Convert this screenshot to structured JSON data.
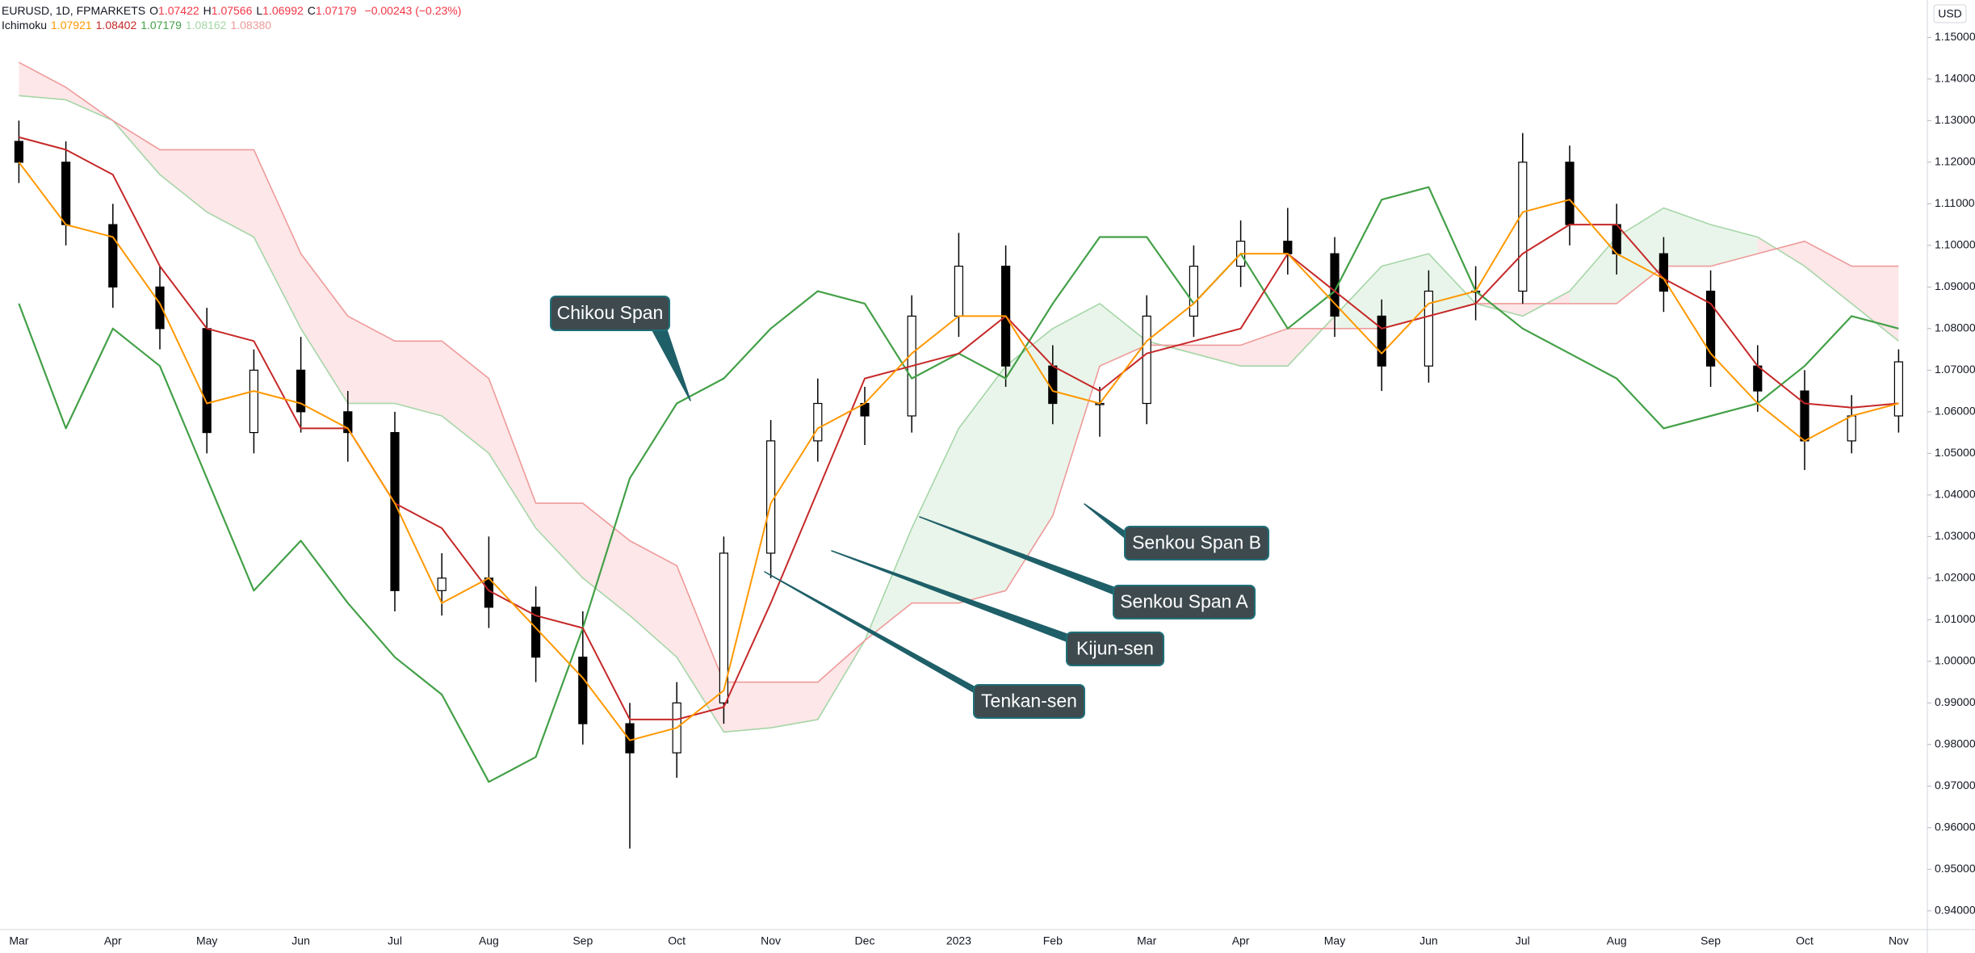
{
  "header": {
    "symbol": "EURUSD, 1D, FPMARKETS",
    "quote": [
      [
        "O",
        "1.07422"
      ],
      [
        "H",
        "1.07566"
      ],
      [
        "L",
        "1.06992"
      ],
      [
        "C",
        "1.07179"
      ]
    ],
    "change": "−0.00243 (−0.23%)",
    "indicator": "Ichimoku",
    "indicator_values": [
      "1.07921",
      "1.08402",
      "1.07179",
      "1.08162",
      "1.08380"
    ]
  },
  "chart_data": {
    "type": "candlestick",
    "currency": "USD",
    "categories": [
      "Mar",
      null,
      "Apr",
      null,
      "May",
      null,
      "Jun",
      null,
      "Jul",
      null,
      "Aug",
      null,
      "Sep",
      null,
      "Oct",
      null,
      "Nov",
      null,
      "Dec",
      null,
      "2023",
      null,
      "Feb",
      null,
      "Mar",
      null,
      "Apr",
      null,
      "May",
      null,
      "Jun",
      null,
      "Jul",
      null,
      "Aug",
      null,
      "Sep",
      null,
      "Oct",
      null,
      "Nov"
    ],
    "candles": {
      "up_color": "#ffffff",
      "down_color": "#000000",
      "open": [
        1.125,
        1.12,
        1.105,
        1.09,
        1.08,
        1.055,
        1.07,
        1.06,
        1.055,
        1.017,
        1.02,
        1.013,
        1.001,
        0.985,
        0.978,
        0.99,
        1.026,
        1.053,
        1.062,
        1.059,
        1.083,
        1.095,
        1.071,
        1.062,
        1.062,
        1.083,
        1.095,
        1.101,
        1.098,
        1.083,
        1.071,
        1.089,
        1.089,
        1.12,
        1.105,
        1.098,
        1.089,
        1.071,
        1.065,
        1.053,
        1.059
      ],
      "high": [
        1.13,
        1.125,
        1.11,
        1.095,
        1.085,
        1.075,
        1.078,
        1.065,
        1.06,
        1.026,
        1.03,
        1.018,
        1.012,
        0.99,
        0.995,
        1.03,
        1.058,
        1.068,
        1.066,
        1.088,
        1.103,
        1.1,
        1.076,
        1.066,
        1.088,
        1.1,
        1.106,
        1.109,
        1.102,
        1.087,
        1.094,
        1.095,
        1.127,
        1.124,
        1.11,
        1.102,
        1.094,
        1.076,
        1.07,
        1.064,
        1.075
      ],
      "low": [
        1.115,
        1.1,
        1.085,
        1.075,
        1.05,
        1.05,
        1.055,
        1.048,
        1.012,
        1.011,
        1.008,
        0.995,
        0.98,
        0.955,
        0.972,
        0.985,
        1.02,
        1.048,
        1.052,
        1.055,
        1.078,
        1.066,
        1.057,
        1.054,
        1.057,
        1.078,
        1.09,
        1.093,
        1.078,
        1.065,
        1.067,
        1.082,
        1.086,
        1.1,
        1.093,
        1.084,
        1.066,
        1.06,
        1.046,
        1.05,
        1.055
      ],
      "close": [
        1.12,
        1.105,
        1.09,
        1.08,
        1.055,
        1.07,
        1.06,
        1.055,
        1.017,
        1.02,
        1.013,
        1.001,
        0.985,
        0.978,
        0.99,
        1.026,
        1.053,
        1.062,
        1.059,
        1.083,
        1.095,
        1.071,
        1.062,
        1.062,
        1.083,
        1.095,
        1.101,
        1.098,
        1.083,
        1.071,
        1.089,
        1.089,
        1.12,
        1.105,
        1.098,
        1.089,
        1.071,
        1.065,
        1.053,
        1.059,
        1.072
      ]
    },
    "series": [
      {
        "name": "Tenkan-sen",
        "color": "#ff9800",
        "values": [
          1.12,
          1.105,
          1.102,
          1.086,
          1.062,
          1.065,
          1.062,
          1.056,
          1.038,
          1.014,
          1.02,
          1.008,
          0.996,
          0.981,
          0.984,
          0.993,
          1.038,
          1.056,
          1.062,
          1.074,
          1.083,
          1.083,
          1.065,
          1.062,
          1.077,
          1.086,
          1.098,
          1.098,
          1.086,
          1.074,
          1.086,
          1.089,
          1.108,
          1.111,
          1.098,
          1.092,
          1.074,
          1.062,
          1.053,
          1.059,
          1.062
        ]
      },
      {
        "name": "Kijun-sen",
        "color": "#c62828",
        "values": [
          1.126,
          1.123,
          1.117,
          1.095,
          1.08,
          1.077,
          1.056,
          1.056,
          1.038,
          1.032,
          1.017,
          1.011,
          1.008,
          0.986,
          0.986,
          0.989,
          1.014,
          1.041,
          1.068,
          1.071,
          1.074,
          1.083,
          1.071,
          1.065,
          1.074,
          1.077,
          1.08,
          1.098,
          1.089,
          1.08,
          1.083,
          1.086,
          1.098,
          1.105,
          1.105,
          1.092,
          1.086,
          1.071,
          1.062,
          1.061,
          1.062
        ]
      },
      {
        "name": "Chikou Span",
        "color": "#43a047",
        "values": [
          1.086,
          1.056,
          1.08,
          1.071,
          1.044,
          1.017,
          1.029,
          1.014,
          1.001,
          0.992,
          0.971,
          0.977,
          1.008,
          1.044,
          1.062,
          1.068,
          1.08,
          1.089,
          1.086,
          1.068,
          1.074,
          1.068,
          1.086,
          1.102,
          1.102,
          1.086,
          1.098,
          1.08,
          1.089,
          1.111,
          1.114,
          1.089,
          1.08,
          1.074,
          1.068,
          1.056,
          1.059,
          1.062,
          1.071,
          1.083,
          1.08
        ]
      },
      {
        "name": "Senkou Span A",
        "color": "#a5d6a7",
        "values": [
          1.136,
          1.135,
          1.13,
          1.117,
          1.108,
          1.102,
          1.08,
          1.062,
          1.062,
          1.059,
          1.05,
          1.032,
          1.02,
          1.011,
          1.001,
          0.983,
          0.984,
          0.986,
          1.005,
          1.032,
          1.056,
          1.071,
          1.08,
          1.086,
          1.077,
          1.074,
          1.071,
          1.071,
          1.083,
          1.095,
          1.098,
          1.086,
          1.083,
          1.089,
          1.102,
          1.109,
          1.105,
          1.102,
          1.095,
          1.086,
          1.077
        ]
      },
      {
        "name": "Senkou Span B",
        "color": "#ef9a9a",
        "values": [
          1.144,
          1.138,
          1.13,
          1.123,
          1.123,
          1.123,
          1.098,
          1.083,
          1.077,
          1.077,
          1.068,
          1.038,
          1.038,
          1.029,
          1.023,
          0.995,
          0.995,
          0.995,
          1.005,
          1.014,
          1.014,
          1.017,
          1.035,
          1.071,
          1.076,
          1.076,
          1.076,
          1.08,
          1.08,
          1.08,
          1.083,
          1.086,
          1.086,
          1.086,
          1.086,
          1.095,
          1.095,
          1.098,
          1.101,
          1.095,
          1.095
        ]
      }
    ],
    "cloud_colors": [
      "#4caf50",
      "#f23645"
    ],
    "ylim": [
      0.9355,
      1.159
    ],
    "yticks": [
      {
        "value": 0.94,
        "label": "0.94000"
      },
      {
        "value": 0.95,
        "label": "0.95000"
      },
      {
        "value": 0.96,
        "label": "0.96000"
      },
      {
        "value": 0.97,
        "label": "0.97000"
      },
      {
        "value": 0.98,
        "label": "0.98000"
      },
      {
        "value": 0.99,
        "label": "0.99000"
      },
      {
        "value": 1.0,
        "label": "1.00000"
      },
      {
        "value": 1.01,
        "label": "1.01000"
      },
      {
        "value": 1.02,
        "label": "1.02000"
      },
      {
        "value": 1.03,
        "label": "1.03000"
      },
      {
        "value": 1.04,
        "label": "1.04000"
      },
      {
        "value": 1.05,
        "label": "1.05000"
      },
      {
        "value": 1.06,
        "label": "1.06000"
      },
      {
        "value": 1.07,
        "label": "1.07000"
      },
      {
        "value": 1.08,
        "label": "1.08000"
      },
      {
        "value": 1.09,
        "label": "1.09000"
      },
      {
        "value": 1.1,
        "label": "1.10000"
      },
      {
        "value": 1.11,
        "label": "1.11000"
      },
      {
        "value": 1.12,
        "label": "1.12000"
      },
      {
        "value": 1.13,
        "label": "1.13000"
      },
      {
        "value": 1.14,
        "label": "1.14000"
      },
      {
        "value": 1.15,
        "label": "1.15000"
      }
    ],
    "grid": false
  }
}
